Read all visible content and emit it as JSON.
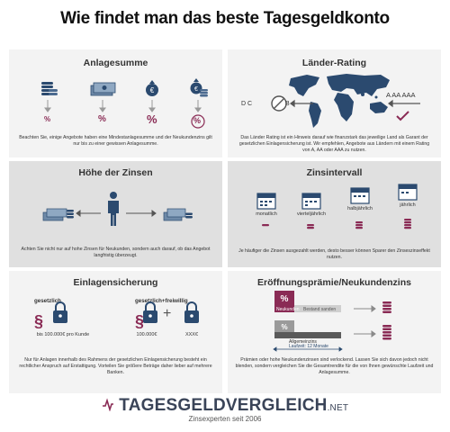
{
  "title": "Wie findet man das beste Tagesgeldkonto",
  "panels": {
    "anlagesumme": {
      "heading": "Anlagesumme",
      "percent_sign": "%",
      "text": "Beachten Sie, einige Angebote haben eine Mindestanlagesumme und der Neukundenzins gilt nur bis zu einer gewissen Anlagesumme."
    },
    "laender_rating": {
      "heading": "Länder-Rating",
      "ratings_low": "D  C",
      "rating_b": "B",
      "ratings_high": "A   AA   AAA",
      "text": "Das Länder Rating ist ein Hinweis darauf wie finanzstark das jeweilige Land als Garant der gesetzlichen Einlagensicherung ist. Wir empfehlen, Angebote aus Ländern mit einem Rating von A, AA oder AAA zu nutzen."
    },
    "hoehe_zinsen": {
      "heading": "Höhe der Zinsen",
      "text": "Achten Sie nicht nur auf hohe Zinsen für Neukunden, sondern auch darauf, ob das Angebot langfristig überzeugt."
    },
    "zinsintervall": {
      "heading": "Zinsintervall",
      "intervals": [
        "monatlich",
        "vierteljährlich",
        "halbjährlich",
        "jährlich"
      ],
      "text": "Je häufiger die Zinsen ausgezahlt werden, desto besser können Sparer den Zinseszinseffekt nutzen."
    },
    "einlagensicherung": {
      "heading": "Einlagensicherung",
      "label_gesetzlich": "gesetzlich",
      "label_freiwillig": "gesetzlich+freiwillig",
      "amount_left": "bis 100.000€ pro Kunde",
      "amount_mid": "100.000€",
      "amount_right": "XXX€",
      "plus": "+",
      "text": "Nur für Anlagen innerhalb des Rahmens der gesetzlichen Einlagensicherung besteht ein rechtlicher Anspruch auf Erstattigung. Vorteilen Sie größere Beträge daher lieber auf mehrere Banken."
    },
    "eroeffnungspraemie": {
      "heading": "Eröffnungsprämie/Neukundenzins",
      "label_neukunden": "Neukunden",
      "label_bestand": "Bestand sanden",
      "label_allgemein": "Allgemeinzins",
      "label_laufzeit": "Laufzeit: 12 Monate",
      "text": "Prämien oder hohe Neukundenzinsen sind verlockend. Lassen Sie sich davon jedoch nicht blenden, sondern vergleichen Sie die Gesamtrendite für die von Ihnen gewünschte Laufzeit und Anlagesumme."
    }
  },
  "logo": {
    "name": "TAGESGELDVERGLEICH",
    "tld": ".NET",
    "tagline": "Zinsexperten seit 2006"
  },
  "colors": {
    "accent": "#8a2b55",
    "navy": "#2b4a6f",
    "dark": "#3a4458",
    "panel_light": "#f3f3f3",
    "panel_grey": "#e0e0e0"
  }
}
